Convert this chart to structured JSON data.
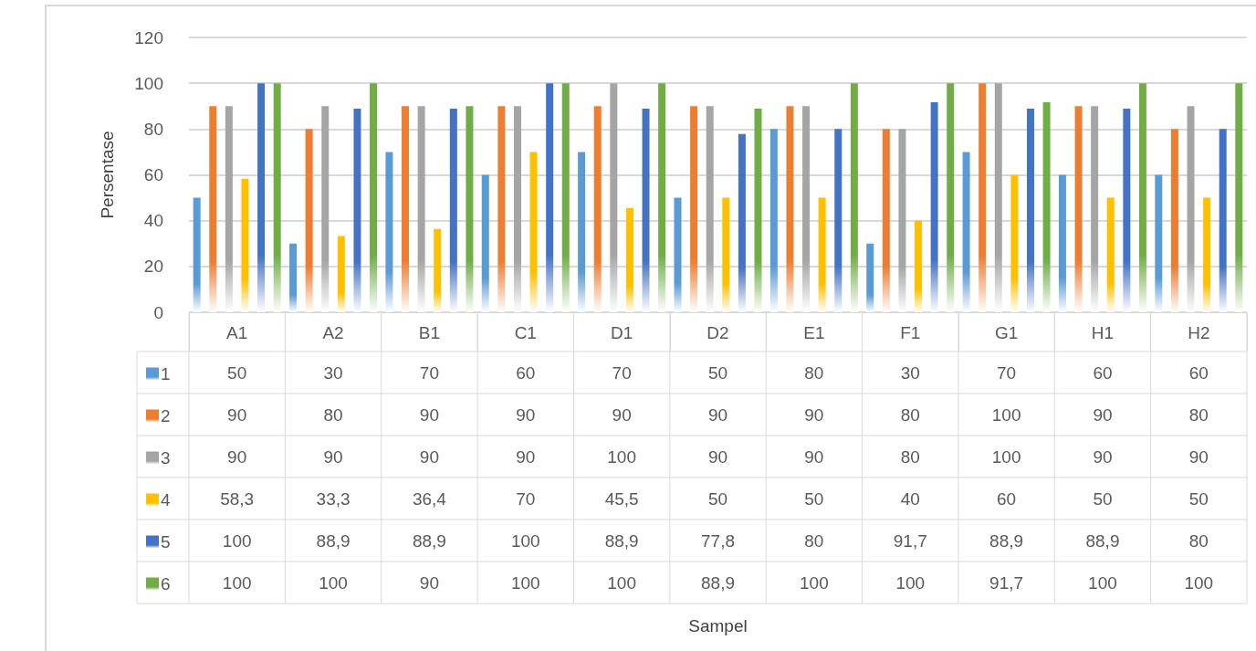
{
  "chart_data": {
    "type": "bar",
    "annotations": [
      "Sampel"
    ],
    "ylabel": "Persentase",
    "categories": [
      "A1",
      "A2",
      "B1",
      "C1",
      "D1",
      "D2",
      "E1",
      "F1",
      "G1",
      "H1",
      "H2"
    ],
    "ylim": [
      0,
      120
    ],
    "yticks": [
      0,
      20,
      40,
      60,
      80,
      100,
      120
    ],
    "grid": "y",
    "legend": "bottom left",
    "series": [
      {
        "name": "1",
        "color": "#5b9bd5",
        "values": [
          50,
          30,
          70,
          60,
          70,
          50,
          80,
          30,
          70,
          60,
          60
        ],
        "value_labels": [
          "50",
          "30",
          "70",
          "60",
          "70",
          "50",
          "80",
          "30",
          "70",
          "60",
          "60"
        ]
      },
      {
        "name": "2",
        "color": "#ed7d31",
        "values": [
          90,
          80,
          90,
          90,
          90,
          90,
          90,
          80,
          100,
          90,
          80
        ],
        "value_labels": [
          "90",
          "80",
          "90",
          "90",
          "90",
          "90",
          "90",
          "80",
          "100",
          "90",
          "80"
        ]
      },
      {
        "name": "3",
        "color": "#a5a5a5",
        "values": [
          90,
          90,
          90,
          90,
          100,
          90,
          90,
          80,
          100,
          90,
          90
        ],
        "value_labels": [
          "90",
          "90",
          "90",
          "90",
          "100",
          "90",
          "90",
          "80",
          "100",
          "90",
          "90"
        ]
      },
      {
        "name": "4",
        "color": "#ffc000",
        "values": [
          58.3,
          33.3,
          36.4,
          70,
          45.5,
          50,
          50,
          40,
          60,
          50,
          50
        ],
        "value_labels": [
          "58,3",
          "33,3",
          "36,4",
          "70",
          "45,5",
          "50",
          "50",
          "40",
          "60",
          "50",
          "50"
        ]
      },
      {
        "name": "5",
        "color": "#4472c4",
        "values": [
          100,
          88.9,
          88.9,
          100,
          88.9,
          77.8,
          80,
          91.7,
          88.9,
          88.9,
          80
        ],
        "value_labels": [
          "100",
          "88,9",
          "88,9",
          "100",
          "88,9",
          "77,8",
          "80",
          "91,7",
          "88,9",
          "88,9",
          "80"
        ]
      },
      {
        "name": "6",
        "color": "#70ad47",
        "values": [
          100,
          100,
          90,
          100,
          100,
          88.9,
          100,
          100,
          91.7,
          100,
          100
        ],
        "value_labels": [
          "100",
          "100",
          "90",
          "100",
          "100",
          "88,9",
          "100",
          "100",
          "91,7",
          "100",
          "100"
        ]
      }
    ]
  }
}
